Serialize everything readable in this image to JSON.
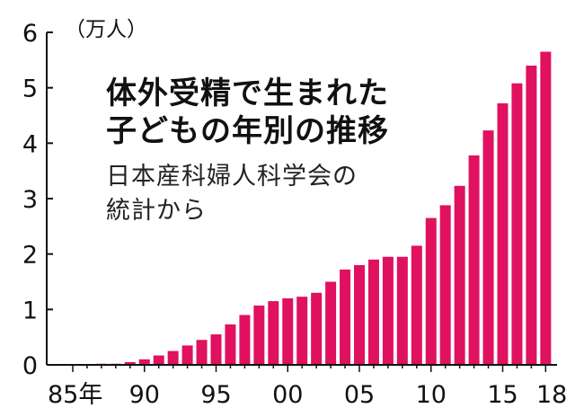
{
  "chart_data": {
    "type": "bar",
    "title_lines": [
      "体外受精で生まれた",
      "子どもの年別の推移"
    ],
    "source_lines": [
      "日本産科婦人科学会の",
      "統計から"
    ],
    "unit": "（万人）",
    "x": [
      1985,
      1986,
      1987,
      1988,
      1989,
      1990,
      1991,
      1992,
      1993,
      1994,
      1995,
      1996,
      1997,
      1998,
      1999,
      2000,
      2001,
      2002,
      2003,
      2004,
      2005,
      2006,
      2007,
      2008,
      2009,
      2010,
      2011,
      2012,
      2013,
      2014,
      2015,
      2016,
      2017,
      2018
    ],
    "values": [
      0.0,
      0.0,
      0.02,
      0.02,
      0.05,
      0.1,
      0.17,
      0.25,
      0.35,
      0.45,
      0.55,
      0.73,
      0.9,
      1.07,
      1.15,
      1.2,
      1.23,
      1.3,
      1.5,
      1.72,
      1.8,
      1.9,
      1.95,
      1.95,
      2.15,
      2.65,
      2.88,
      3.23,
      3.78,
      4.23,
      4.72,
      5.08,
      5.4,
      5.65
    ],
    "x_tick_labels": [
      {
        "year": 1985,
        "label": "85年"
      },
      {
        "year": 1990,
        "label": "90"
      },
      {
        "year": 1995,
        "label": "95"
      },
      {
        "year": 2000,
        "label": "00"
      },
      {
        "year": 2005,
        "label": "05"
      },
      {
        "year": 2010,
        "label": "10"
      },
      {
        "year": 2015,
        "label": "15"
      },
      {
        "year": 2018,
        "label": "18"
      }
    ],
    "y_ticks": [
      0,
      1,
      2,
      3,
      4,
      5,
      6
    ],
    "ylim": [
      0,
      6
    ],
    "bar_color": "#e0115f",
    "grid": false
  }
}
